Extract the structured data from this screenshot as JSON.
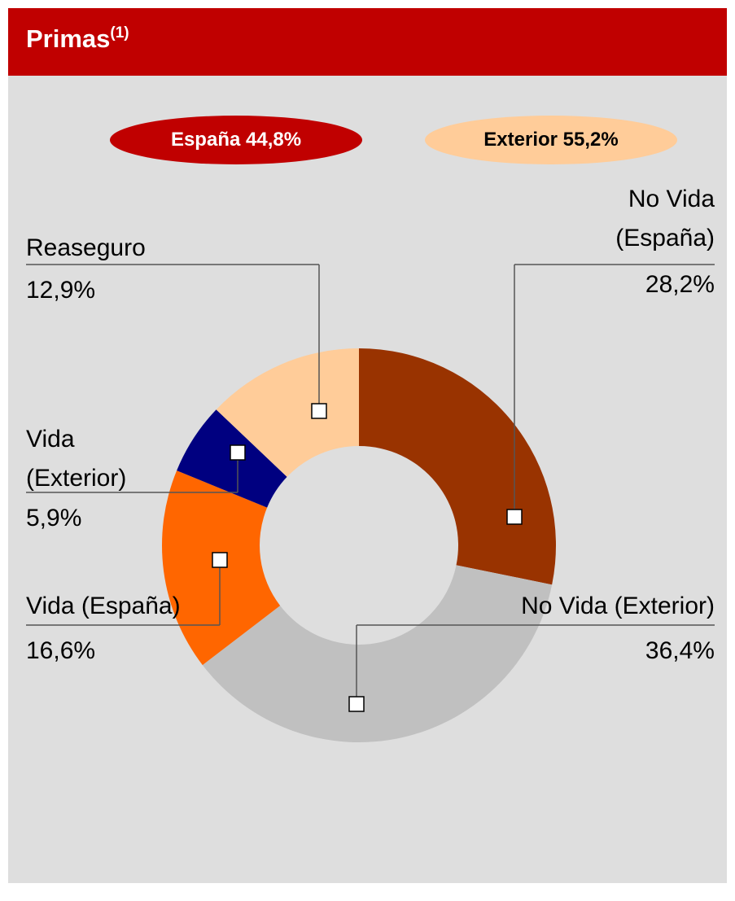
{
  "chart_data": {
    "type": "donut",
    "title": "Primas",
    "title_superscript": "(1)",
    "groups": [
      {
        "label": "España 44,8%",
        "color": "#c00000"
      },
      {
        "label": "Exterior 55,2%",
        "color": "#ffcc99"
      }
    ],
    "categories": [
      "No Vida (España)",
      "No Vida (Exterior)",
      "Vida (España)",
      "Vida (Exterior)",
      "Reaseguro"
    ],
    "values": [
      28.2,
      36.4,
      16.6,
      5.9,
      12.9
    ],
    "value_labels": [
      "28,2%",
      "36,4%",
      "16,6%",
      "5,9%",
      "12,9%"
    ],
    "colors": [
      "#993300",
      "#c0c0c0",
      "#ff6600",
      "#000080",
      "#ffcc99"
    ]
  }
}
